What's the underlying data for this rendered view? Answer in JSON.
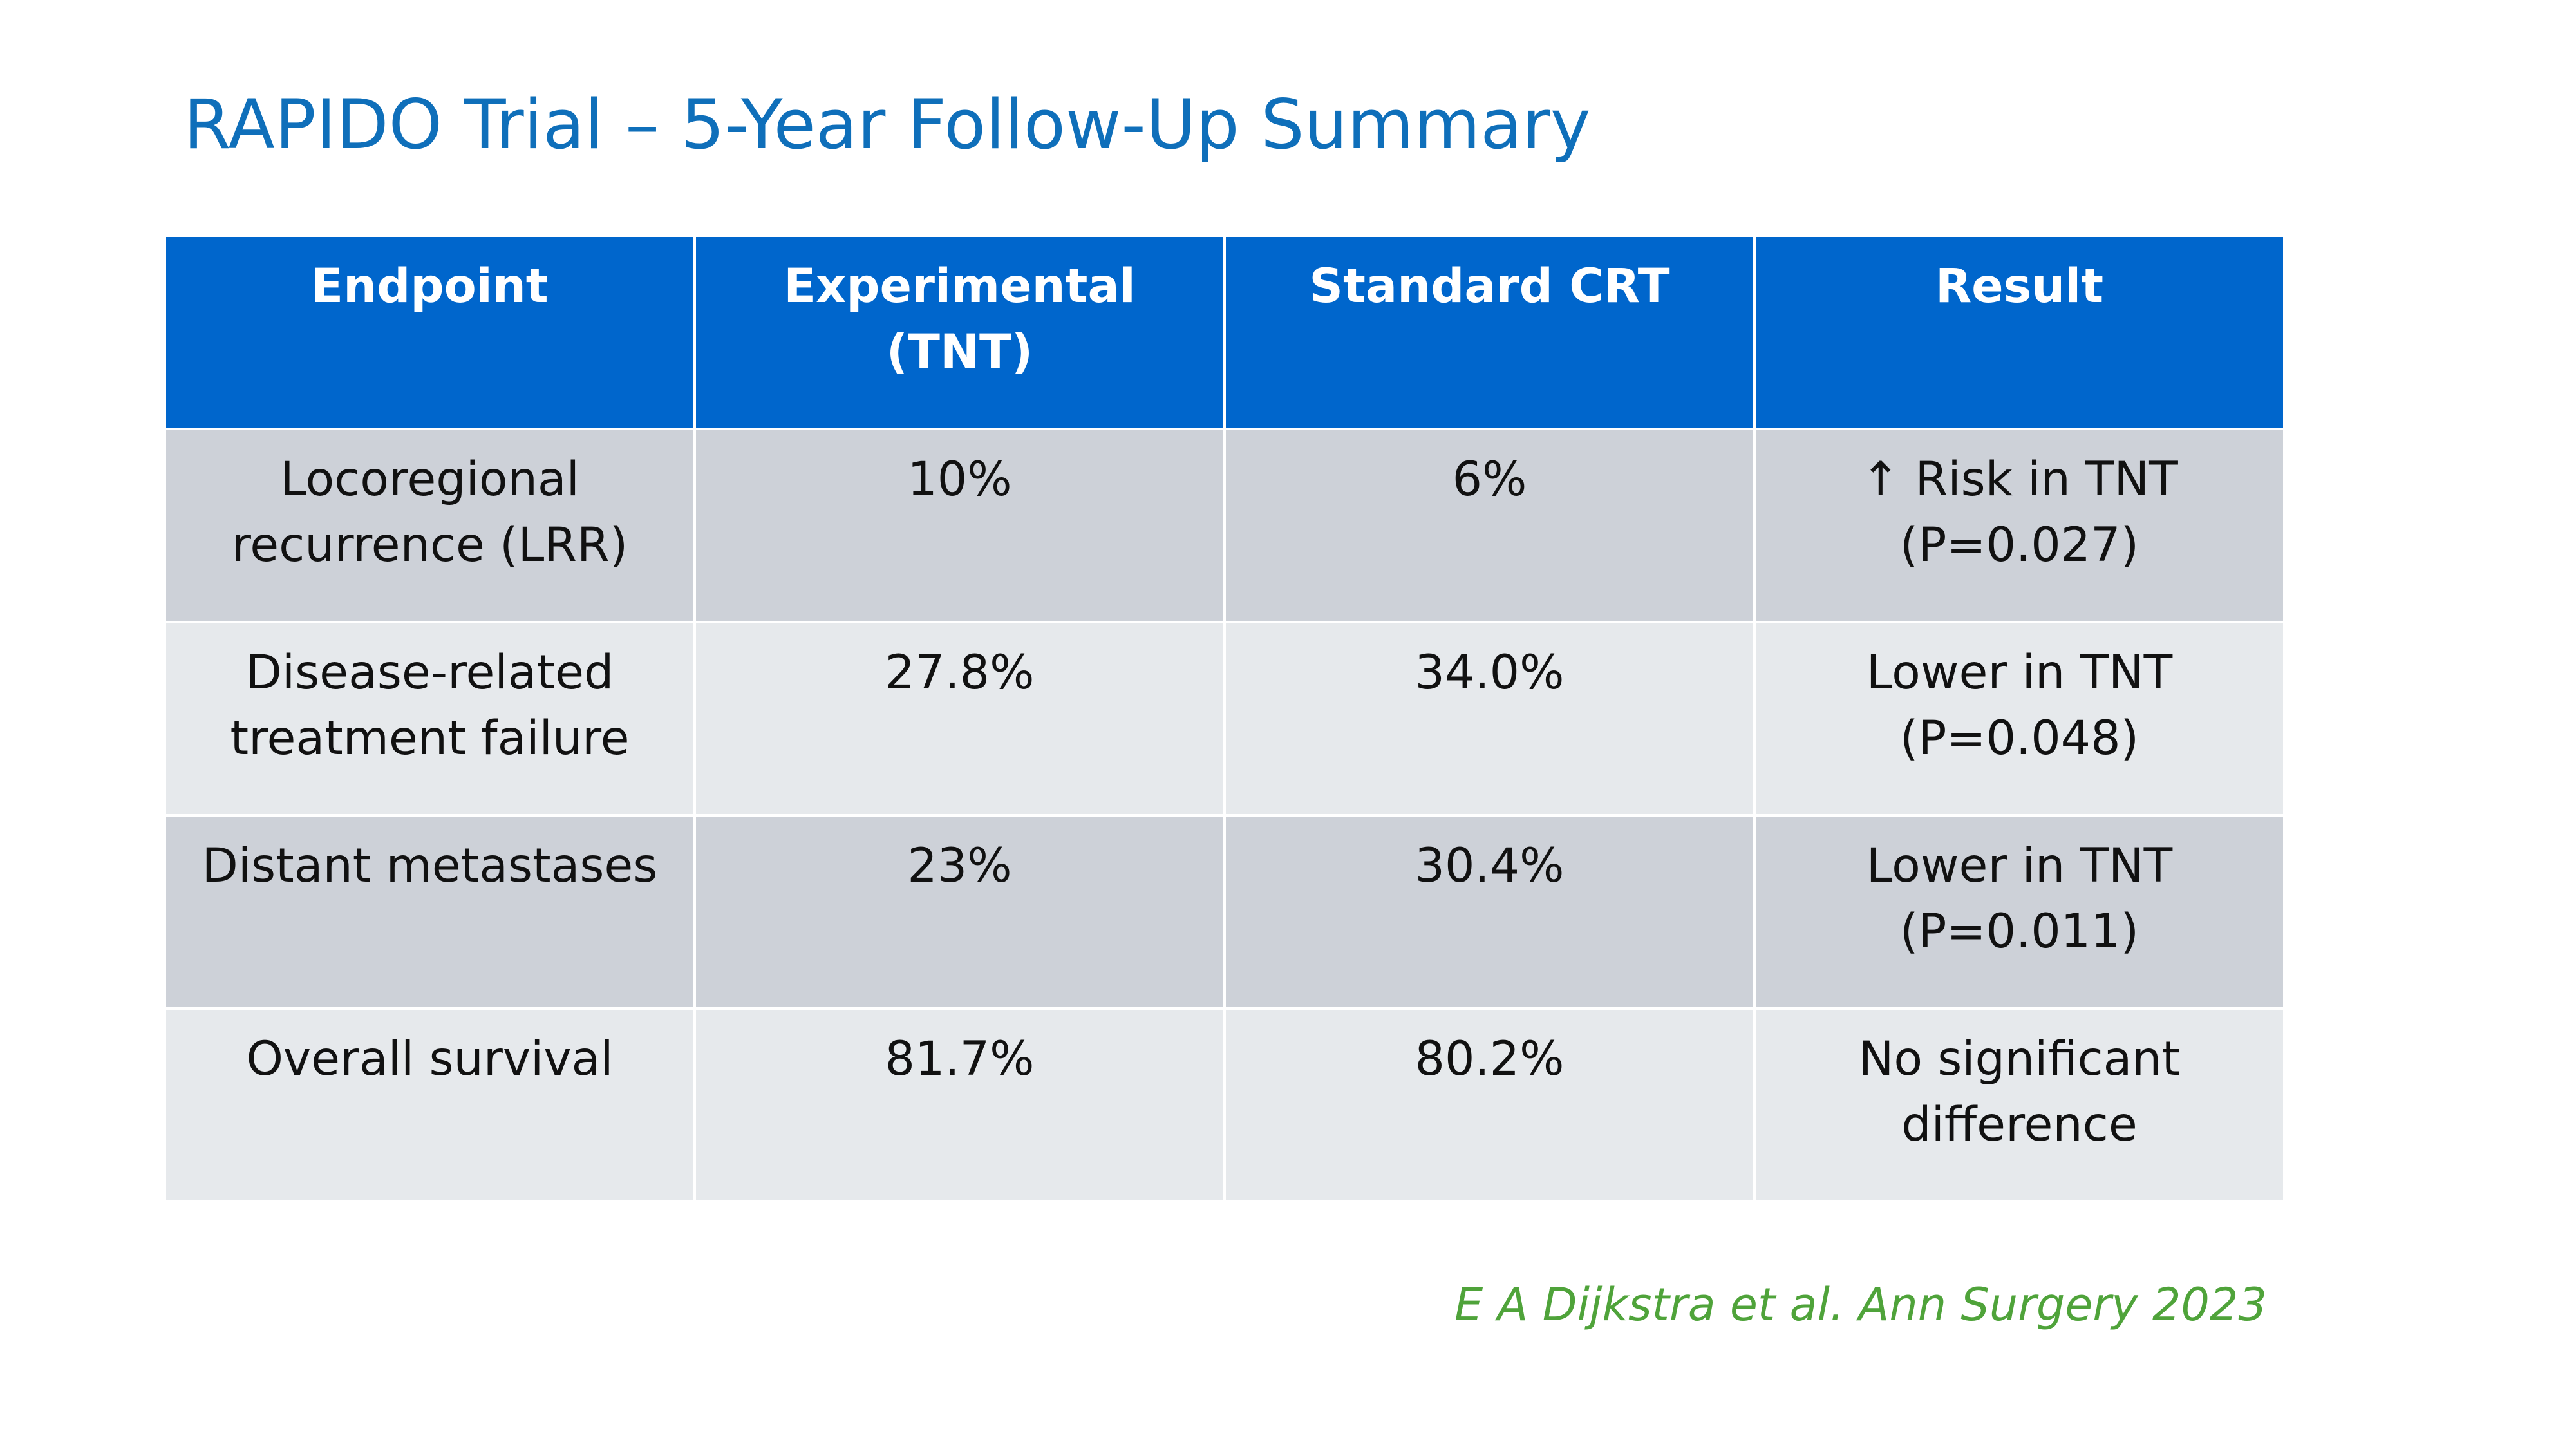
{
  "title": "RAPIDO Trial – 5-Year Follow-Up Summary",
  "table": {
    "headers": [
      "Endpoint",
      "Experimental (TNT)",
      "Standard CRT",
      "Result"
    ],
    "rows": [
      {
        "endpoint": [
          "Locoregional",
          "recurrence (LRR)"
        ],
        "experimental": "10%",
        "standard": "6%",
        "result": [
          "↑ Risk in TNT",
          "(P=0.027)"
        ]
      },
      {
        "endpoint": [
          "Disease-related",
          "treatment failure"
        ],
        "experimental": "27.8%",
        "standard": "34.0%",
        "result": [
          "Lower in TNT",
          "(P=0.048)"
        ]
      },
      {
        "endpoint": [
          "Distant metastases"
        ],
        "experimental": "23%",
        "standard": "30.4%",
        "result": [
          "Lower in TNT",
          "(P=0.011)"
        ]
      },
      {
        "endpoint": [
          "Overall survival"
        ],
        "experimental": "81.7%",
        "standard": "80.2%",
        "result": [
          "No significant",
          "difference"
        ]
      }
    ]
  },
  "citation": "E A Dijkstra et al. Ann Surgery 2023",
  "colors": {
    "title": "#0f6fba",
    "header_bg": "#0066cc",
    "row_odd_bg": "#cdd1d8",
    "row_even_bg": "#e6e9ec",
    "citation": "#4fa33a"
  }
}
